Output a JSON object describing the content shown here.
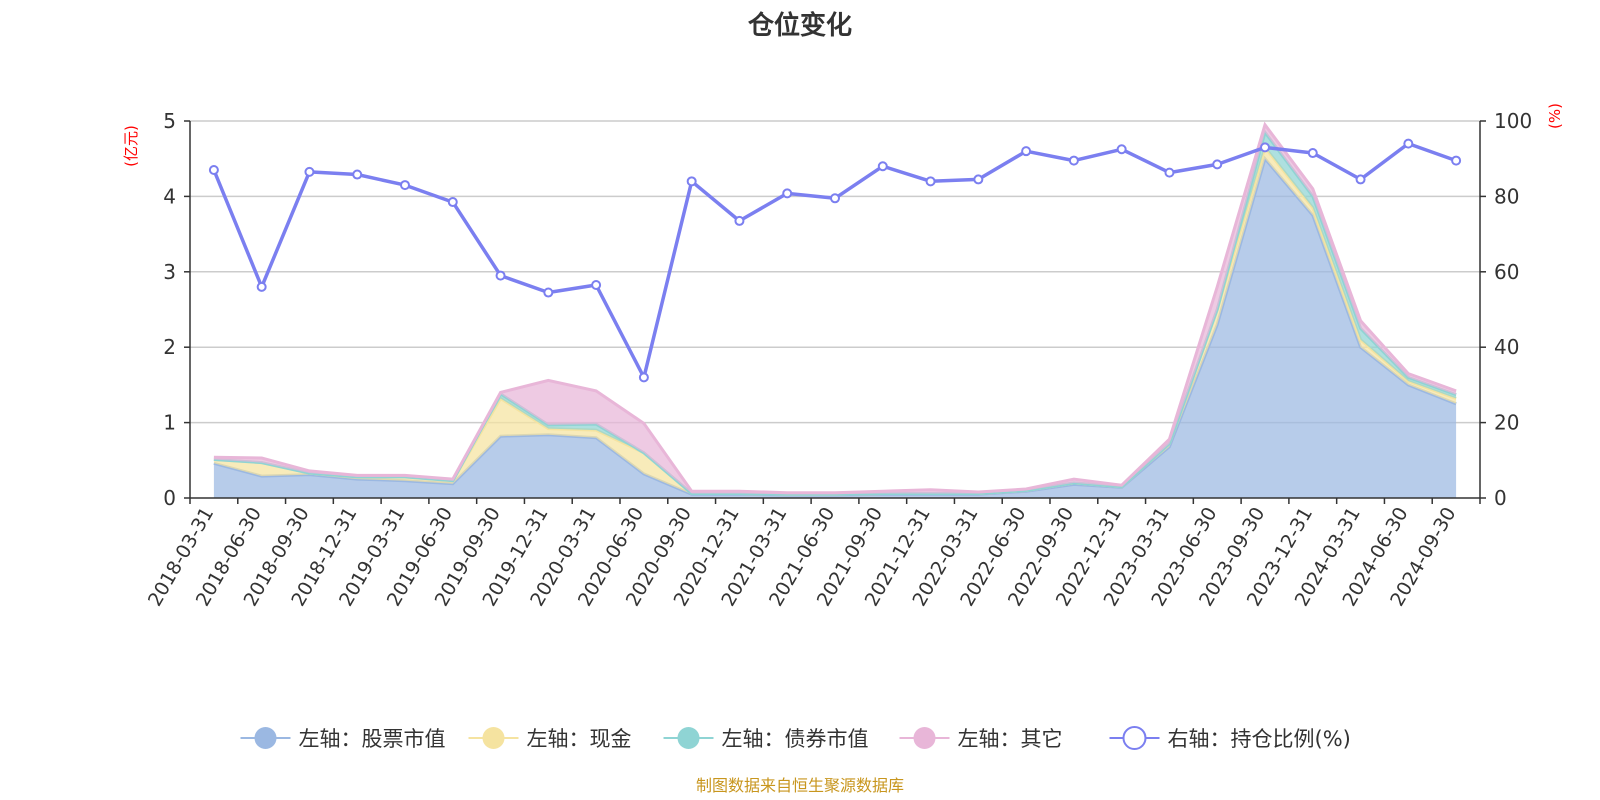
{
  "chart_data": {
    "type": "area",
    "title": "仓位变化",
    "left_axis_unit": "(亿元)",
    "right_axis_unit": "(%)",
    "left_ylim": [
      0,
      5
    ],
    "left_ticks": [
      0,
      1,
      2,
      3,
      4,
      5
    ],
    "right_ylim": [
      0,
      100
    ],
    "right_ticks": [
      0,
      20,
      40,
      60,
      80,
      100
    ],
    "grid": true,
    "legend_position": "bottom",
    "categories": [
      "2018-03-31",
      "2018-06-30",
      "2018-09-30",
      "2018-12-31",
      "2019-03-31",
      "2019-06-30",
      "2019-09-30",
      "2019-12-31",
      "2020-03-31",
      "2020-06-30",
      "2020-09-30",
      "2020-12-31",
      "2021-03-31",
      "2021-06-30",
      "2021-09-30",
      "2021-12-31",
      "2022-03-31",
      "2022-06-30",
      "2022-09-30",
      "2022-12-31",
      "2023-03-31",
      "2023-06-30",
      "2023-09-30",
      "2023-12-31",
      "2024-03-31",
      "2024-06-30",
      "2024-09-30"
    ],
    "stacked_series": [
      {
        "name": "左轴：股票市值",
        "axis": "left",
        "color": "#9bb8e2",
        "values": [
          0.46,
          0.29,
          0.31,
          0.25,
          0.23,
          0.19,
          0.82,
          0.84,
          0.8,
          0.32,
          0.05,
          0.05,
          0.04,
          0.04,
          0.05,
          0.05,
          0.05,
          0.09,
          0.18,
          0.14,
          0.68,
          2.3,
          4.5,
          3.75,
          2.0,
          1.5,
          1.25
        ]
      },
      {
        "name": "左轴：现金",
        "axis": "left",
        "color": "#f5e3a0",
        "values": [
          0.05,
          0.18,
          0.02,
          0.03,
          0.05,
          0.04,
          0.5,
          0.08,
          0.1,
          0.28,
          0.01,
          0.01,
          0.01,
          0.01,
          0.01,
          0.01,
          0.01,
          0.01,
          0.02,
          0.01,
          0.04,
          0.2,
          0.15,
          0.1,
          0.1,
          0.05,
          0.07
        ]
      },
      {
        "name": "左轴：债券市值",
        "axis": "left",
        "color": "#8fd4d4",
        "values": [
          0.0,
          0.0,
          0.0,
          0.0,
          0.0,
          0.0,
          0.06,
          0.05,
          0.08,
          0.0,
          0.0,
          0.0,
          0.0,
          0.0,
          0.0,
          0.0,
          0.0,
          0.0,
          0.0,
          0.0,
          0.0,
          0.0,
          0.2,
          0.15,
          0.15,
          0.05,
          0.05
        ]
      },
      {
        "name": "左轴：其它",
        "axis": "left",
        "color": "#e8b6d8",
        "values": [
          0.03,
          0.06,
          0.03,
          0.02,
          0.02,
          0.02,
          0.02,
          0.59,
          0.44,
          0.39,
          0.03,
          0.03,
          0.02,
          0.02,
          0.03,
          0.05,
          0.02,
          0.02,
          0.05,
          0.02,
          0.06,
          0.3,
          0.1,
          0.1,
          0.1,
          0.05,
          0.05
        ]
      }
    ],
    "line_series": {
      "name": "右轴：持仓比例(%)",
      "axis": "right",
      "color": "#7b7ff0",
      "values": [
        87,
        56,
        86.5,
        85.8,
        83,
        78.5,
        59,
        54.5,
        56.5,
        32,
        84,
        73.5,
        80.8,
        79.5,
        88,
        84,
        84.5,
        92,
        89.5,
        92.5,
        86.3,
        88.5,
        93,
        91.5,
        84.5,
        94,
        89.5
      ]
    },
    "source": "制图数据来自恒生聚源数据库"
  },
  "legend": [
    {
      "label": "左轴：股票市值",
      "color": "#9bb8e2",
      "icon": "filled-circle"
    },
    {
      "label": "左轴：现金",
      "color": "#f5e3a0",
      "icon": "filled-circle"
    },
    {
      "label": "左轴：债券市值",
      "color": "#8fd4d4",
      "icon": "filled-circle"
    },
    {
      "label": "左轴：其它",
      "color": "#e8b6d8",
      "icon": "filled-circle"
    },
    {
      "label": "右轴：持仓比例(%)",
      "color": "#7b7ff0",
      "icon": "hollow-circle"
    }
  ]
}
